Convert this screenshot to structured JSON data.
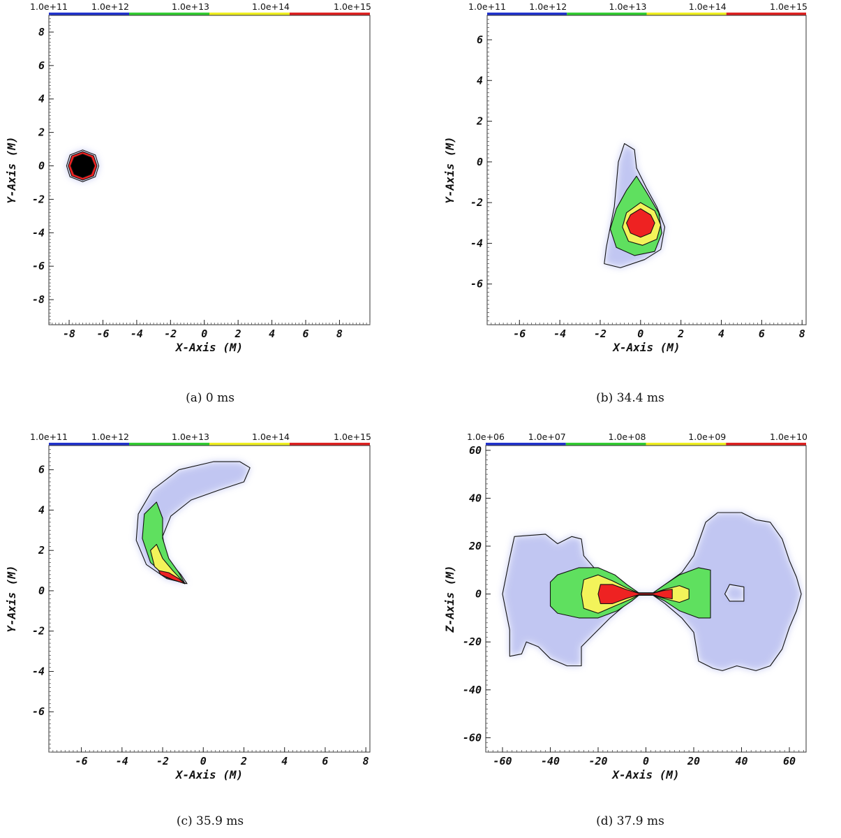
{
  "chart_data": [
    {
      "type": "heatmap",
      "caption": "(a)  0 ms",
      "xlabel": "X-Axis  (M)",
      "ylabel": "Y-Axis  (M)",
      "xlim": [
        -9.2,
        9.8
      ],
      "ylim": [
        -9.5,
        9.0
      ],
      "xticks": [
        -8,
        -6,
        -4,
        -2,
        0,
        2,
        4,
        6,
        8
      ],
      "yticks": [
        -8,
        -6,
        -4,
        -2,
        0,
        2,
        4,
        6,
        8
      ],
      "colorbar": {
        "labels": [
          "1.0e+11",
          "1.0e+12",
          "1.0e+13",
          "1.0e+14",
          "1.0e+15"
        ],
        "colors": [
          "#2233cc",
          "#33cc33",
          "#eeee22",
          "#dd2222"
        ]
      },
      "contours": [
        {
          "level": "1.0e+11",
          "points": [
            [
              -7.2,
              0.95
            ],
            [
              -6.45,
              0.65
            ],
            [
              -6.25,
              0
            ],
            [
              -6.45,
              -0.65
            ],
            [
              -7.2,
              -0.95
            ],
            [
              -7.95,
              -0.65
            ],
            [
              -8.15,
              0
            ],
            [
              -7.95,
              0.65
            ]
          ]
        },
        {
          "level": "1.0e+14",
          "points": [
            [
              -7.2,
              0.85
            ],
            [
              -6.55,
              0.6
            ],
            [
              -6.35,
              0
            ],
            [
              -6.55,
              -0.6
            ],
            [
              -7.2,
              -0.85
            ],
            [
              -7.85,
              -0.6
            ],
            [
              -8.05,
              0
            ],
            [
              -7.85,
              0.6
            ]
          ]
        },
        {
          "level": "1.0e+15",
          "points": [
            [
              -7.2,
              0.7
            ],
            [
              -6.7,
              0.5
            ],
            [
              -6.5,
              0
            ],
            [
              -6.7,
              -0.5
            ],
            [
              -7.2,
              -0.7
            ],
            [
              -7.7,
              -0.5
            ],
            [
              -7.9,
              0
            ],
            [
              -7.7,
              0.5
            ]
          ]
        }
      ]
    },
    {
      "type": "heatmap",
      "caption": "(b)  34.4 ms",
      "xlabel": "X-Axis  (M)",
      "ylabel": "Y-Axis  (M)",
      "xlim": [
        -7.6,
        8.2
      ],
      "ylim": [
        -8.0,
        7.2
      ],
      "xticks": [
        -6,
        -4,
        -2,
        0,
        2,
        4,
        6,
        8
      ],
      "yticks": [
        -6,
        -4,
        -2,
        0,
        2,
        4,
        6
      ],
      "colorbar": {
        "labels": [
          "1.0e+11",
          "1.0e+12",
          "1.0e+13",
          "1.0e+14",
          "1.0e+15"
        ],
        "colors": [
          "#2233cc",
          "#33cc33",
          "#eeee22",
          "#dd2222"
        ]
      },
      "contours": [
        {
          "level": "1.0e+11",
          "points": [
            [
              -0.8,
              0.9
            ],
            [
              -0.3,
              0.6
            ],
            [
              -0.2,
              -0.3
            ],
            [
              0.3,
              -1.3
            ],
            [
              0.8,
              -2.2
            ],
            [
              1.2,
              -3.2
            ],
            [
              1.0,
              -4.3
            ],
            [
              0.2,
              -4.8
            ],
            [
              -1.0,
              -5.2
            ],
            [
              -1.8,
              -5.0
            ],
            [
              -1.7,
              -4.2
            ],
            [
              -1.5,
              -3.2
            ],
            [
              -1.3,
              -2.2
            ],
            [
              -1.2,
              -1.1
            ],
            [
              -1.1,
              0.0
            ]
          ]
        },
        {
          "level": "1.0e+12",
          "points": [
            [
              -0.2,
              -0.7
            ],
            [
              0.3,
              -1.5
            ],
            [
              0.9,
              -2.5
            ],
            [
              1.05,
              -3.5
            ],
            [
              0.7,
              -4.4
            ],
            [
              -0.3,
              -4.6
            ],
            [
              -1.2,
              -4.2
            ],
            [
              -1.5,
              -3.3
            ],
            [
              -1.2,
              -2.3
            ],
            [
              -0.7,
              -1.4
            ]
          ]
        },
        {
          "level": "1.0e+13",
          "points": [
            [
              0.0,
              -2.0
            ],
            [
              0.7,
              -2.4
            ],
            [
              1.0,
              -3.1
            ],
            [
              0.8,
              -3.8
            ],
            [
              0.1,
              -4.1
            ],
            [
              -0.6,
              -3.9
            ],
            [
              -0.9,
              -3.2
            ],
            [
              -0.7,
              -2.5
            ]
          ]
        },
        {
          "level": "1.0e+14",
          "points": [
            [
              0.0,
              -2.3
            ],
            [
              0.5,
              -2.6
            ],
            [
              0.7,
              -3.0
            ],
            [
              0.5,
              -3.5
            ],
            [
              0.0,
              -3.7
            ],
            [
              -0.5,
              -3.5
            ],
            [
              -0.7,
              -3.0
            ],
            [
              -0.5,
              -2.6
            ]
          ]
        }
      ]
    },
    {
      "type": "heatmap",
      "caption": "(c)  35.9 ms",
      "xlabel": "X-Axis  (M)",
      "ylabel": "Y-Axis  (M)",
      "xlim": [
        -7.6,
        8.2
      ],
      "ylim": [
        -8.0,
        7.2
      ],
      "xticks": [
        -6,
        -4,
        -2,
        0,
        2,
        4,
        6,
        8
      ],
      "yticks": [
        -6,
        -4,
        -2,
        0,
        2,
        4,
        6
      ],
      "colorbar": {
        "labels": [
          "1.0e+11",
          "1.0e+12",
          "1.0e+13",
          "1.0e+14",
          "1.0e+15"
        ],
        "colors": [
          "#2233cc",
          "#33cc33",
          "#eeee22",
          "#dd2222"
        ]
      },
      "contours": [
        {
          "level": "1.0e+11",
          "points": [
            [
              -0.8,
              0.35
            ],
            [
              -1.8,
              0.6
            ],
            [
              -2.8,
              1.3
            ],
            [
              -3.3,
              2.5
            ],
            [
              -3.2,
              3.8
            ],
            [
              -2.5,
              5.0
            ],
            [
              -1.2,
              6.0
            ],
            [
              0.5,
              6.4
            ],
            [
              1.8,
              6.4
            ],
            [
              2.3,
              6.1
            ],
            [
              2.0,
              5.4
            ],
            [
              0.8,
              5.0
            ],
            [
              -0.6,
              4.5
            ],
            [
              -1.6,
              3.7
            ],
            [
              -2.0,
              2.7
            ],
            [
              -1.8,
              1.6
            ],
            [
              -1.1,
              0.8
            ]
          ]
        },
        {
          "level": "1.0e+12",
          "points": [
            [
              -0.9,
              0.35
            ],
            [
              -1.8,
              0.7
            ],
            [
              -2.6,
              1.4
            ],
            [
              -3.0,
              2.6
            ],
            [
              -2.9,
              3.8
            ],
            [
              -2.3,
              4.4
            ],
            [
              -2.0,
              3.6
            ],
            [
              -2.0,
              2.6
            ],
            [
              -1.7,
              1.6
            ],
            [
              -1.2,
              0.9
            ]
          ]
        },
        {
          "level": "1.0e+13",
          "points": [
            [
              -0.9,
              0.35
            ],
            [
              -1.8,
              0.65
            ],
            [
              -2.4,
              1.2
            ],
            [
              -2.6,
              2.0
            ],
            [
              -2.3,
              2.3
            ],
            [
              -2.0,
              1.6
            ],
            [
              -1.5,
              1.0
            ]
          ]
        },
        {
          "level": "1.0e+14",
          "points": [
            [
              -0.9,
              0.35
            ],
            [
              -1.5,
              0.55
            ],
            [
              -2.1,
              0.8
            ],
            [
              -2.2,
              1.0
            ],
            [
              -1.7,
              0.9
            ],
            [
              -1.2,
              0.6
            ]
          ]
        }
      ]
    },
    {
      "type": "heatmap",
      "caption": "(d)  37.9 ms",
      "xlabel": "X-Axis  (M)",
      "ylabel": "Z-Axis  (M)",
      "xlim": [
        -67,
        67
      ],
      "ylim": [
        -66,
        62
      ],
      "xticks": [
        -60,
        -40,
        -20,
        0,
        20,
        40,
        60
      ],
      "yticks": [
        -60,
        -40,
        -20,
        0,
        20,
        40,
        60
      ],
      "colorbar": {
        "labels": [
          "1.0e+06",
          "1.0e+07",
          "1.0e+08",
          "1.0e+09",
          "1.0e+10"
        ],
        "colors": [
          "#2233cc",
          "#33cc33",
          "#eeee22",
          "#dd2222"
        ]
      },
      "contours": [
        {
          "level": "1.0e+06",
          "points": [
            [
              -3,
              0.5
            ],
            [
              -10,
              3
            ],
            [
              -20,
              9
            ],
            [
              -26,
              16
            ],
            [
              -27,
              23
            ],
            [
              -31,
              24
            ],
            [
              -37,
              21
            ],
            [
              -42,
              25
            ],
            [
              -55,
              24
            ],
            [
              -57,
              15
            ],
            [
              -60,
              0
            ],
            [
              -57,
              -15
            ],
            [
              -57,
              -26
            ],
            [
              -52,
              -25
            ],
            [
              -50,
              -20
            ],
            [
              -45,
              -22
            ],
            [
              -40,
              -27
            ],
            [
              -33,
              -30
            ],
            [
              -27,
              -30
            ],
            [
              -27,
              -22
            ],
            [
              -22,
              -17
            ],
            [
              -15,
              -10
            ],
            [
              -8,
              -4
            ],
            [
              -3,
              -0.5
            ],
            [
              3,
              -0.5
            ],
            [
              8,
              -4
            ],
            [
              15,
              -10
            ],
            [
              20,
              -16
            ],
            [
              22,
              -28
            ],
            [
              28,
              -31
            ],
            [
              32,
              -32
            ],
            [
              38,
              -30
            ],
            [
              46,
              -32
            ],
            [
              52,
              -30
            ],
            [
              57,
              -23
            ],
            [
              60,
              -14
            ],
            [
              63,
              -7
            ],
            [
              65,
              0
            ],
            [
              63,
              7
            ],
            [
              60,
              14
            ],
            [
              57,
              23
            ],
            [
              52,
              30
            ],
            [
              46,
              31
            ],
            [
              40,
              34
            ],
            [
              30,
              34
            ],
            [
              25,
              30
            ],
            [
              20,
              16
            ],
            [
              15,
              9
            ],
            [
              8,
              4
            ],
            [
              3,
              0.5
            ]
          ]
        },
        {
          "level": "1.0e+07",
          "points": [
            [
              -3,
              0.5
            ],
            [
              -8,
              4
            ],
            [
              -13,
              8
            ],
            [
              -20,
              11
            ],
            [
              -28,
              11
            ],
            [
              -37,
              8
            ],
            [
              -40,
              5
            ],
            [
              -40,
              -5
            ],
            [
              -37,
              -8
            ],
            [
              -28,
              -10
            ],
            [
              -20,
              -10
            ],
            [
              -12,
              -7
            ],
            [
              -6,
              -3
            ],
            [
              -3,
              -0.5
            ],
            [
              3,
              -0.5
            ],
            [
              8,
              -3
            ],
            [
              14,
              -7
            ],
            [
              22,
              -10
            ],
            [
              27,
              -10
            ],
            [
              27,
              10
            ],
            [
              22,
              11
            ],
            [
              14,
              8
            ],
            [
              8,
              4
            ],
            [
              3,
              0.5
            ]
          ]
        },
        {
          "level": "1.0e+08",
          "points": [
            [
              -3,
              0.4
            ],
            [
              -8,
              2.5
            ],
            [
              -14,
              5.5
            ],
            [
              -20,
              8
            ],
            [
              -26,
              6
            ],
            [
              -27,
              0
            ],
            [
              -26,
              -6
            ],
            [
              -20,
              -8
            ],
            [
              -13,
              -5
            ],
            [
              -6,
              -2
            ],
            [
              -3,
              -0.4
            ],
            [
              3,
              -0.4
            ],
            [
              8,
              -2
            ],
            [
              14,
              -3.5
            ],
            [
              18,
              -2
            ],
            [
              18,
              2
            ],
            [
              14,
              3.5
            ],
            [
              8,
              2
            ],
            [
              3,
              0.4
            ]
          ]
        },
        {
          "level": "1.0e+09",
          "points": [
            [
              -3,
              0.3
            ],
            [
              -8,
              1.8
            ],
            [
              -14,
              4
            ],
            [
              -19,
              4
            ],
            [
              -20,
              0
            ],
            [
              -19,
              -4
            ],
            [
              -14,
              -4
            ],
            [
              -8,
              -1.8
            ],
            [
              -3,
              -0.3
            ],
            [
              3,
              -0.3
            ],
            [
              7,
              -1.4
            ],
            [
              11,
              -2
            ],
            [
              11,
              2
            ],
            [
              7,
              1.4
            ],
            [
              3,
              0.3
            ]
          ]
        },
        {
          "level": "1.0e+06",
          "points": [
            [
              35,
              4
            ],
            [
              41,
              3
            ],
            [
              41,
              -3
            ],
            [
              35,
              -3
            ],
            [
              33,
              0
            ]
          ]
        }
      ]
    }
  ]
}
